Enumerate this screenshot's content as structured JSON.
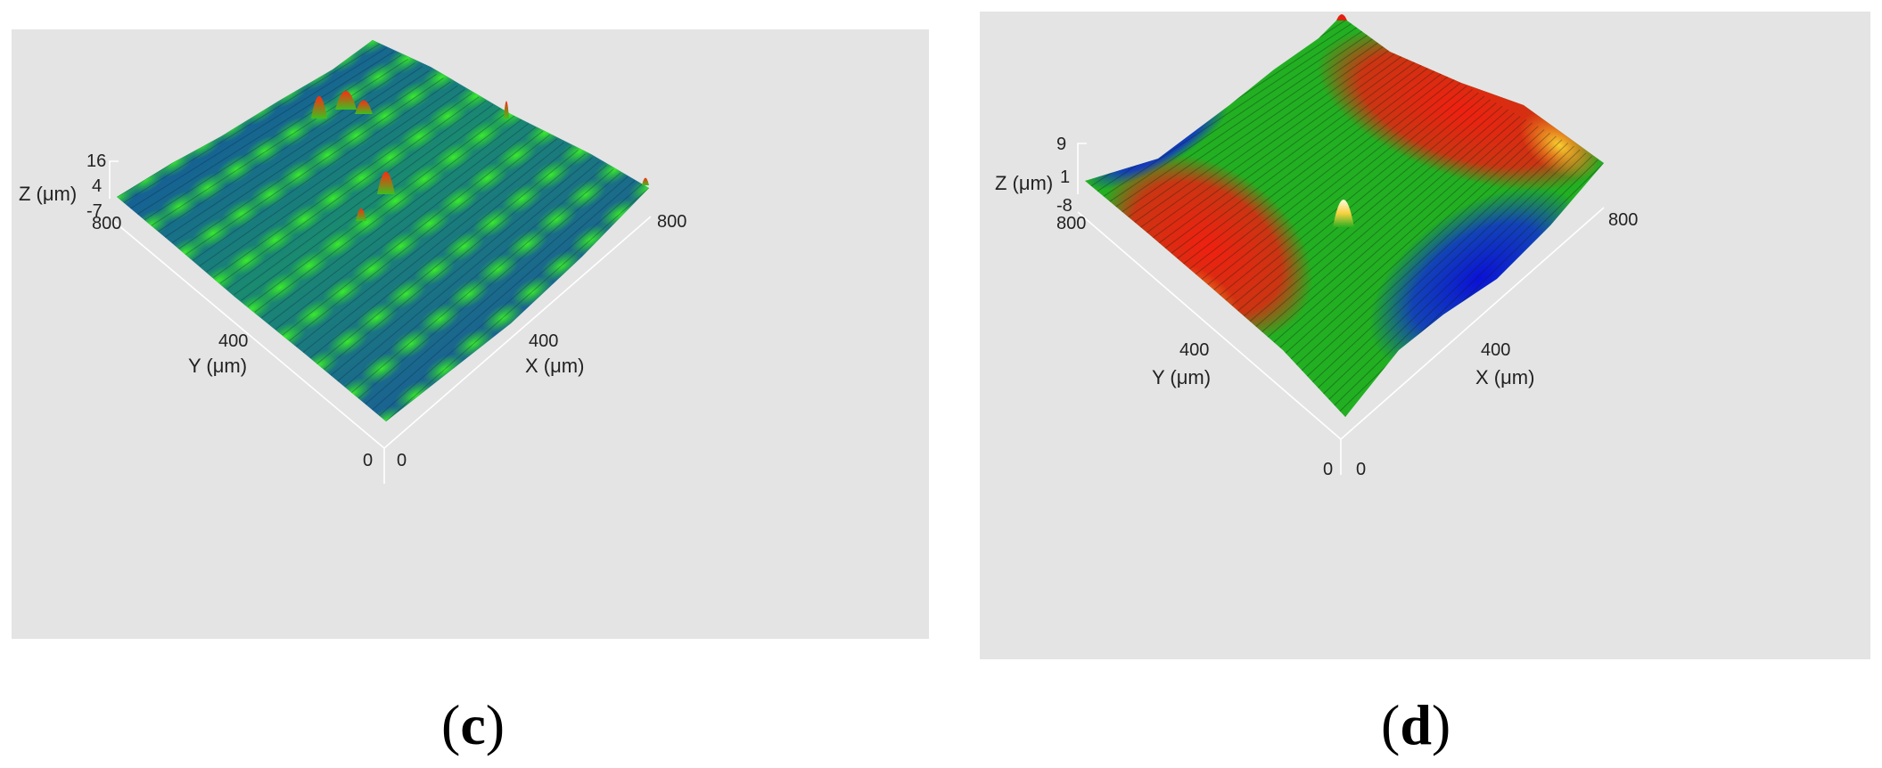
{
  "figure_panels": [
    {
      "label": "c",
      "axis_labels": {
        "x": "X (μm)",
        "y": "Y (μm)",
        "z": "Z (μm)"
      },
      "tick_labels": {
        "x": [
          "0",
          "400",
          "800"
        ],
        "y": [
          "0",
          "400",
          "800"
        ],
        "z": [
          "-7",
          "4",
          "16"
        ]
      }
    },
    {
      "label": "d",
      "axis_labels": {
        "x": "X (μm)",
        "y": "Y (μm)",
        "z": "Z (μm)"
      },
      "tick_labels": {
        "x": [
          "0",
          "400",
          "800"
        ],
        "y": [
          "0",
          "400",
          "800"
        ],
        "z": [
          "-8",
          "1",
          "9"
        ]
      }
    }
  ],
  "chart_data": [
    {
      "type": "surface",
      "panel": "c",
      "x_range": [
        0,
        800
      ],
      "y_range": [
        0,
        800
      ],
      "z_range": [
        -7,
        16
      ],
      "xlabel": "X (μm)",
      "ylabel": "Y (μm)",
      "zlabel": "Z (μm)",
      "x_ticks": [
        0,
        400,
        800
      ],
      "y_ticks": [
        0,
        400,
        800
      ],
      "z_ticks": [
        -7,
        4,
        16
      ],
      "colormap": [
        "#1030c0",
        "#1a7f5a",
        "#22d41e",
        "#e02010"
      ],
      "grid": false,
      "legend": "none"
    },
    {
      "type": "surface",
      "panel": "d",
      "x_range": [
        0,
        800
      ],
      "y_range": [
        0,
        800
      ],
      "z_range": [
        -8,
        9
      ],
      "xlabel": "X (μm)",
      "ylabel": "Y (μm)",
      "zlabel": "Z (μm)",
      "x_ticks": [
        0,
        400,
        800
      ],
      "y_ticks": [
        0,
        400,
        800
      ],
      "z_ticks": [
        -8,
        1,
        9
      ],
      "colormap": [
        "#0a10d0",
        "#20c020",
        "#e82010",
        "#f5c020"
      ],
      "grid": false,
      "legend": "none"
    }
  ]
}
